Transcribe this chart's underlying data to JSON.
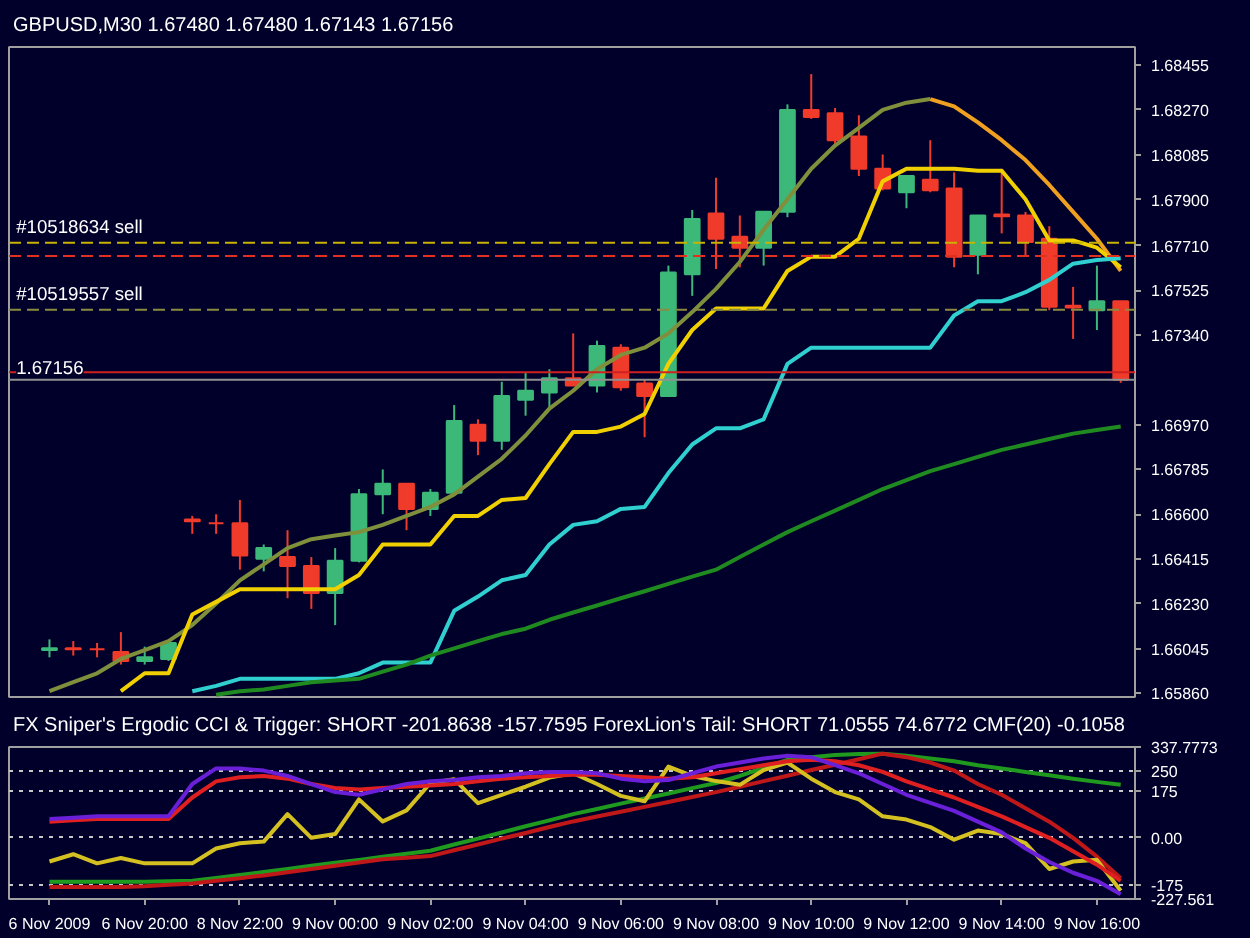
{
  "chart_data": [
    {
      "type": "candlestick",
      "title": "GBPUSD,M30  1.67480 1.67480 1.67143 1.67156",
      "categories": [
        null,
        null,
        null,
        null,
        null,
        null,
        null,
        null,
        null,
        null,
        null,
        null,
        null,
        null,
        null,
        null,
        null,
        null,
        null,
        null,
        null,
        null,
        null,
        null,
        null,
        null,
        null,
        null,
        null,
        null,
        null,
        null,
        null,
        null,
        null,
        null,
        null,
        null,
        null,
        null,
        null,
        null,
        null,
        null,
        null,
        null
      ],
      "ohlc": [
        [
          1.66039,
          1.66083,
          1.66009,
          1.66046
        ],
        [
          1.66046,
          1.66076,
          1.66016,
          1.66042
        ],
        [
          1.66042,
          1.66068,
          1.66009,
          1.66042
        ],
        [
          1.66031,
          1.66113,
          1.65979,
          1.65994
        ],
        [
          1.65994,
          1.66053,
          1.65979,
          1.66009
        ],
        [
          1.66002,
          1.66076,
          1.65994,
          1.66068
        ],
        [
          1.66578,
          1.66593,
          1.66519,
          1.66571
        ],
        [
          1.66563,
          1.666,
          1.66519,
          1.66563
        ],
        [
          1.66563,
          1.66659,
          1.66371,
          1.6643
        ],
        [
          1.66416,
          1.66475,
          1.66364,
          1.6646
        ],
        [
          1.66423,
          1.66534,
          1.66253,
          1.66386
        ],
        [
          1.66386,
          1.66423,
          1.66209,
          1.66275
        ],
        [
          1.66275,
          1.6646,
          1.66142,
          1.66408
        ],
        [
          1.66408,
          1.66704,
          1.66401,
          1.66682
        ],
        [
          1.66682,
          1.66785,
          1.666,
          1.66726
        ],
        [
          1.66726,
          1.66726,
          1.66534,
          1.66622
        ],
        [
          1.66622,
          1.66704,
          1.66593,
          1.66689
        ],
        [
          1.66689,
          1.67051,
          1.66682,
          1.66985
        ],
        [
          1.6697,
          1.66992,
          1.66844,
          1.66903
        ],
        [
          1.66903,
          1.67147,
          1.66866,
          1.67088
        ],
        [
          1.67073,
          1.67184,
          1.67007,
          1.6711
        ],
        [
          1.67103,
          1.67199,
          1.67029,
          1.67162
        ],
        [
          1.67162,
          1.67347,
          1.67132,
          1.67132
        ],
        [
          1.67132,
          1.67317,
          1.67103,
          1.67295
        ],
        [
          1.67288,
          1.67302,
          1.6711,
          1.67125
        ],
        [
          1.6714,
          1.67155,
          1.66918,
          1.67088
        ],
        [
          1.67088,
          1.67627,
          1.67088,
          1.67598
        ],
        [
          1.67591,
          1.67857,
          1.67502,
          1.6782
        ],
        [
          1.67842,
          1.6799,
          1.67613,
          1.67738
        ],
        [
          1.67746,
          1.67834,
          1.6762,
          1.67701
        ],
        [
          1.67701,
          1.67849,
          1.67627,
          1.67849
        ],
        [
          1.67849,
          1.68293,
          1.67827,
          1.6827
        ],
        [
          1.6827,
          1.68418,
          1.68233,
          1.68241
        ],
        [
          1.68256,
          1.68278,
          1.68123,
          1.68145
        ],
        [
          1.6816,
          1.68248,
          1.67997,
          1.68027
        ],
        [
          1.68027,
          1.68086,
          1.67938,
          1.67945
        ],
        [
          1.6793,
          1.67997,
          1.67864,
          1.67997
        ],
        [
          1.67982,
          1.68145,
          1.6793,
          1.67938
        ],
        [
          1.67945,
          1.68012,
          1.6762,
          1.67664
        ],
        [
          1.67672,
          1.67834,
          1.67591,
          1.67834
        ],
        [
          1.67838,
          1.68027,
          1.6776,
          1.67831
        ],
        [
          1.67834,
          1.67849,
          1.67664,
          1.67724
        ],
        [
          1.67738,
          1.6779,
          1.67443,
          1.67457
        ],
        [
          1.67461,
          1.67539,
          1.67324,
          1.67454
        ],
        [
          1.67443,
          1.67627,
          1.67361,
          1.6748
        ],
        [
          1.6748,
          1.6748,
          1.67143,
          1.67156
        ]
      ],
      "colors": [
        "#3cb878",
        "#f03a2a",
        "#f03a2a",
        "#f03a2a",
        "#3cb878",
        "#3cb878",
        "#f03a2a",
        "#f03a2a",
        "#f03a2a",
        "#3cb878",
        "#f03a2a",
        "#f03a2a",
        "#3cb878",
        "#3cb878",
        "#3cb878",
        "#f03a2a",
        "#3cb878",
        "#3cb878",
        "#f03a2a",
        "#3cb878",
        "#3cb878",
        "#3cb878",
        "#f03a2a",
        "#3cb878",
        "#f03a2a",
        "#f03a2a",
        "#3cb878",
        "#3cb878",
        "#f03a2a",
        "#f03a2a",
        "#3cb878",
        "#3cb878",
        "#f03a2a",
        "#f03a2a",
        "#f03a2a",
        "#f03a2a",
        "#3cb878",
        "#f03a2a",
        "#f03a2a",
        "#3cb878",
        "#f03a2a",
        "#f03a2a",
        "#f03a2a",
        "#f03a2a",
        "#3cb878",
        "#f03a2a"
      ],
      "series": [
        {
          "type": "line",
          "color": "#7f8f3c",
          "values": [
            1.65869,
            1.65906,
            1.65943,
            1.66002,
            1.66039,
            1.66076,
            1.66142,
            1.66231,
            1.66327,
            1.66393,
            1.6646,
            1.66497,
            1.66512,
            1.66526,
            1.66556,
            1.66593,
            1.6663,
            1.66682,
            1.66755,
            1.66829,
            1.66925,
            1.67036,
            1.6711,
            1.67199,
            1.67258,
            1.67288,
            1.67347,
            1.67435,
            1.67531,
            1.67642,
            1.67775,
            1.67901,
            1.68027,
            1.68123,
            1.68196,
            1.6827,
            1.683,
            1.68315,
            null,
            null,
            null,
            null,
            null,
            null,
            null,
            null
          ]
        },
        {
          "type": "line",
          "color": "#f0a020",
          "values": [
            null,
            null,
            null,
            null,
            null,
            null,
            null,
            null,
            null,
            null,
            null,
            null,
            null,
            null,
            null,
            null,
            null,
            null,
            null,
            null,
            null,
            null,
            null,
            null,
            null,
            null,
            null,
            null,
            null,
            null,
            null,
            null,
            null,
            null,
            null,
            null,
            null,
            1.68315,
            1.68285,
            1.68219,
            1.68145,
            1.68063,
            1.6796,
            1.67849,
            1.67738,
            1.67605
          ]
        },
        {
          "type": "line",
          "color": "#f0d000",
          "values": [
            null,
            null,
            null,
            1.65869,
            1.65943,
            1.65943,
            1.66186,
            1.66238,
            1.6629,
            1.6629,
            1.6629,
            1.6629,
            1.6629,
            1.66349,
            1.66475,
            1.66475,
            1.66475,
            1.66593,
            1.66593,
            1.66659,
            1.66667,
            1.66807,
            1.6694,
            1.6694,
            1.66962,
            1.67014,
            1.67221,
            1.67361,
            1.6745,
            1.6745,
            1.6745,
            1.67605,
            1.67664,
            1.67664,
            1.67738,
            1.67975,
            1.68027,
            1.68027,
            1.68027,
            1.68019,
            1.68019,
            1.67901,
            1.67731,
            1.67731,
            1.67701,
            1.6762
          ]
        },
        {
          "type": "line",
          "color": "#30d0d0",
          "values": [
            null,
            null,
            null,
            null,
            null,
            null,
            1.65869,
            1.65891,
            1.6592,
            1.6592,
            1.6592,
            1.6592,
            1.6592,
            1.65943,
            1.65987,
            1.65987,
            1.65987,
            1.66201,
            1.6626,
            1.66327,
            1.66349,
            1.66475,
            1.66556,
            1.66571,
            1.66622,
            1.6663,
            1.6677,
            1.66888,
            1.66955,
            1.66955,
            1.66992,
            1.67221,
            1.67288,
            1.67288,
            1.67288,
            1.67288,
            1.67288,
            1.67288,
            1.67421,
            1.6748,
            1.6748,
            1.67517,
            1.67568,
            1.67635,
            1.6765,
            1.67657
          ]
        },
        {
          "type": "line",
          "color": "#1f8a1f",
          "values": [
            null,
            null,
            null,
            null,
            null,
            null,
            null,
            1.65854,
            1.65869,
            1.65876,
            1.65891,
            1.65906,
            1.65913,
            1.6592,
            1.6595,
            1.65979,
            1.66016,
            1.66046,
            1.66076,
            1.66105,
            1.66127,
            1.66164,
            1.66194,
            1.66223,
            1.66253,
            1.66282,
            1.66312,
            1.66342,
            1.66371,
            1.66423,
            1.66475,
            1.66526,
            1.66571,
            1.66615,
            1.66659,
            1.66704,
            1.66741,
            1.66778,
            1.66807,
            1.66837,
            1.66866,
            1.66888,
            1.66911,
            1.66933,
            1.66948,
            1.66962
          ]
        }
      ],
      "ylim": [
        1.65845,
        1.6853
      ],
      "yticks": [
        {
          "value": 1.6586,
          "label": "1.65860"
        },
        {
          "value": 1.66045,
          "label": "1.66045"
        },
        {
          "value": 1.6623,
          "label": "1.66230"
        },
        {
          "value": 1.66415,
          "label": "1.66415"
        },
        {
          "value": 1.666,
          "label": "1.66600"
        },
        {
          "value": 1.66785,
          "label": "1.66785"
        },
        {
          "value": 1.6697,
          "label": "1.66970"
        },
        {
          "value": 1.6734,
          "label": "1.67340"
        },
        {
          "value": 1.67525,
          "label": "1.67525"
        },
        {
          "value": 1.6771,
          "label": "1.67710"
        },
        {
          "value": 1.679,
          "label": "1.67900"
        },
        {
          "value": 1.68085,
          "label": "1.68085"
        },
        {
          "value": 1.6827,
          "label": "1.68270"
        },
        {
          "value": 1.68455,
          "label": "1.68455"
        }
      ],
      "ref_lines": [
        {
          "axis": "y",
          "value": 1.67721,
          "label": "#10518634 sell",
          "color": "#c8b400",
          "line_style": "dashed"
        },
        {
          "axis": "y",
          "value": 1.67667,
          "label": null,
          "color": "#e03020",
          "line_style": "dashed"
        },
        {
          "axis": "y",
          "value": 1.67445,
          "label": "#10519557 sell",
          "color": "#8a8a40",
          "line_style": "dashed"
        },
        {
          "axis": "y",
          "value": 1.67186,
          "label": null,
          "color": "#d02020",
          "line_style": "solid"
        },
        {
          "axis": "y",
          "value": 1.67156,
          "label": "1.67156",
          "color": "#909090",
          "line_style": "solid"
        }
      ],
      "tick_labels": "y"
    },
    {
      "type": "line",
      "title": "FX Sniper's Ergodic CCI & Trigger: SHORT -201.8638 -157.7595  ForexLion's Tail: SHORT  71.0555 74.6772  CMF(20) -0.1058",
      "categories": [
        "6 Nov 2009",
        null,
        null,
        null,
        "6 Nov 20:00",
        null,
        null,
        null,
        "8 Nov 22:00",
        null,
        null,
        null,
        "9 Nov 00:00",
        null,
        null,
        null,
        "9 Nov 02:00",
        null,
        null,
        null,
        "9 Nov 04:00",
        null,
        null,
        null,
        "9 Nov 06:00",
        null,
        null,
        null,
        "9 Nov 08:00",
        null,
        null,
        null,
        "9 Nov 10:00",
        null,
        null,
        null,
        "9 Nov 12:00",
        null,
        null,
        null,
        "9 Nov 14:00",
        null,
        null,
        null,
        "9 Nov 16:00",
        null
      ],
      "series": [
        {
          "color": "#1f9a1f",
          "values": [
            -163,
            -163,
            -163,
            -163,
            -163,
            -162,
            -160,
            -149,
            -138,
            -127,
            -116,
            -104,
            -93,
            -82,
            -70,
            -59,
            -48,
            -25,
            -3,
            20,
            43,
            65,
            88,
            107,
            127,
            146,
            165,
            185,
            204,
            230,
            260,
            290,
            300,
            308,
            312,
            313,
            305,
            295,
            285,
            270,
            258,
            245,
            233,
            220,
            208,
            197
          ]
        },
        {
          "color": "#c01818",
          "values": [
            -183,
            -183,
            -183,
            -183,
            -180,
            -175,
            -170,
            -160,
            -150,
            -140,
            -128,
            -116,
            -104,
            -92,
            -80,
            -74,
            -68,
            -46,
            -25,
            -3,
            18,
            40,
            61,
            79,
            97,
            115,
            133,
            152,
            170,
            190,
            211,
            231,
            252,
            272,
            292,
            313,
            300,
            280,
            250,
            200,
            160,
            110,
            60,
            0,
            -70,
            -150
          ]
        },
        {
          "color": "#d4c020",
          "values": [
            -88,
            -61,
            -95,
            -75,
            -95,
            -95,
            -95,
            -40,
            -20,
            -14,
            88,
            0,
            14,
            143,
            61,
            102,
            204,
            218,
            129,
            160,
            190,
            224,
            240,
            200,
            156,
            136,
            265,
            230,
            211,
            197,
            252,
            280,
            220,
            170,
            143,
            80,
            68,
            40,
            -7,
            27,
            14,
            -20,
            -116,
            -88,
            -82,
            -197
          ]
        },
        {
          "color": "#e02020",
          "values": [
            60,
            65,
            70,
            70,
            70,
            70,
            150,
            210,
            225,
            230,
            220,
            200,
            185,
            180,
            185,
            190,
            195,
            200,
            210,
            220,
            225,
            230,
            235,
            235,
            230,
            225,
            220,
            225,
            240,
            255,
            270,
            285,
            290,
            285,
            270,
            245,
            210,
            180,
            150,
            115,
            80,
            40,
            0,
            -50,
            -100,
            -160
          ]
        },
        {
          "color": "#6a20d8",
          "values": [
            70,
            75,
            80,
            80,
            80,
            80,
            200,
            258,
            258,
            250,
            230,
            200,
            170,
            160,
            180,
            200,
            210,
            215,
            225,
            230,
            240,
            245,
            245,
            240,
            220,
            210,
            215,
            240,
            265,
            280,
            295,
            305,
            300,
            270,
            240,
            200,
            160,
            130,
            100,
            60,
            20,
            -40,
            -90,
            -130,
            -160,
            -210
          ]
        }
      ],
      "ylim": [
        -227.561,
        337.7773
      ],
      "yticks": [
        {
          "value": 337.7773,
          "label": "337.7773"
        },
        250,
        175,
        {
          "value": 0,
          "label": "0.00"
        },
        -175,
        {
          "value": -227.561,
          "label": "-227.561"
        }
      ],
      "grid": "y"
    }
  ]
}
